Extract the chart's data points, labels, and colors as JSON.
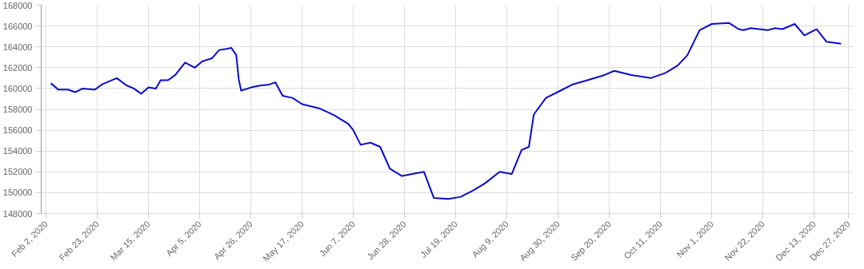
{
  "chart_data": {
    "type": "line",
    "x": [
      "2020-02-04",
      "2020-02-07",
      "2020-02-11",
      "2020-02-14",
      "2020-02-17",
      "2020-02-22",
      "2020-02-25",
      "2020-03-02",
      "2020-03-06",
      "2020-03-09",
      "2020-03-12",
      "2020-03-15",
      "2020-03-18",
      "2020-03-20",
      "2020-03-23",
      "2020-03-26",
      "2020-03-30",
      "2020-04-03",
      "2020-04-06",
      "2020-04-10",
      "2020-04-13",
      "2020-04-16",
      "2020-04-18",
      "2020-04-20",
      "2020-04-21",
      "2020-04-22",
      "2020-04-26",
      "2020-04-30",
      "2020-05-03",
      "2020-05-06",
      "2020-05-09",
      "2020-05-13",
      "2020-05-17",
      "2020-05-24",
      "2020-05-30",
      "2020-06-05",
      "2020-06-07",
      "2020-06-10",
      "2020-06-14",
      "2020-06-18",
      "2020-06-22",
      "2020-06-27",
      "2020-07-01",
      "2020-07-06",
      "2020-07-10",
      "2020-07-16",
      "2020-07-21",
      "2020-07-26",
      "2020-07-31",
      "2020-08-06",
      "2020-08-11",
      "2020-08-15",
      "2020-08-18",
      "2020-08-20",
      "2020-08-25",
      "2020-08-31",
      "2020-09-05",
      "2020-09-11",
      "2020-09-18",
      "2020-09-22",
      "2020-09-29",
      "2020-10-07",
      "2020-10-13",
      "2020-10-18",
      "2020-10-22",
      "2020-10-27",
      "2020-11-01",
      "2020-11-08",
      "2020-11-12",
      "2020-11-14",
      "2020-11-17",
      "2020-11-24",
      "2020-11-27",
      "2020-11-30",
      "2020-12-05",
      "2020-12-09",
      "2020-12-14",
      "2020-12-18",
      "2020-12-24"
    ],
    "series": [
      {
        "color": "#0a0acd",
        "values": [
          160500,
          159900,
          159900,
          159650,
          160000,
          159900,
          160400,
          161000,
          160300,
          160000,
          159500,
          160100,
          160000,
          160800,
          160800,
          161300,
          162500,
          162000,
          162600,
          162900,
          163700,
          163800,
          163900,
          163200,
          160900,
          159800,
          160100,
          160300,
          160350,
          160600,
          159300,
          159100,
          158500,
          158100,
          157450,
          156600,
          156000,
          154600,
          154800,
          154400,
          152300,
          151600,
          151800,
          152000,
          149500,
          149400,
          149600,
          150200,
          150900,
          152000,
          151800,
          154100,
          154400,
          157500,
          159100,
          159800,
          160400,
          160800,
          161300,
          161700,
          161300,
          161000,
          161500,
          162200,
          163200,
          165600,
          166200,
          166300,
          165700,
          165600,
          165800,
          165600,
          165800,
          165700,
          166200,
          165100,
          165700,
          164500,
          164300
        ]
      }
    ],
    "xlim": [
      "2020-01-31",
      "2020-12-29"
    ],
    "xticks": [
      {
        "value": "2020-02-02",
        "label": "Feb 2, 2020"
      },
      {
        "value": "2020-02-23",
        "label": "Feb 23, 2020"
      },
      {
        "value": "2020-03-15",
        "label": "Mar 15, 2020"
      },
      {
        "value": "2020-04-05",
        "label": "Apr 5, 2020"
      },
      {
        "value": "2020-04-26",
        "label": "Apr 26, 2020"
      },
      {
        "value": "2020-05-17",
        "label": "May 17, 2020"
      },
      {
        "value": "2020-06-07",
        "label": "Jun 7, 2020"
      },
      {
        "value": "2020-06-28",
        "label": "Jun 28, 2020"
      },
      {
        "value": "2020-07-19",
        "label": "Jul 19, 2020"
      },
      {
        "value": "2020-08-09",
        "label": "Aug 9, 2020"
      },
      {
        "value": "2020-08-30",
        "label": "Aug 30, 2020"
      },
      {
        "value": "2020-09-20",
        "label": "Sep 20, 2020"
      },
      {
        "value": "2020-10-11",
        "label": "Oct 11, 2020"
      },
      {
        "value": "2020-11-01",
        "label": "Nov 1, 2020"
      },
      {
        "value": "2020-11-22",
        "label": "Nov 22, 2020"
      },
      {
        "value": "2020-12-13",
        "label": "Dec 13, 2020"
      },
      {
        "value": "2020-12-27",
        "label": "Dec 27, 2020"
      }
    ],
    "ylim": [
      148000,
      168000
    ],
    "yticks": [
      148000,
      150000,
      152000,
      154000,
      156000,
      158000,
      160000,
      162000,
      164000,
      166000,
      168000
    ],
    "grid": true,
    "marker": "none",
    "line_style": "solid"
  }
}
